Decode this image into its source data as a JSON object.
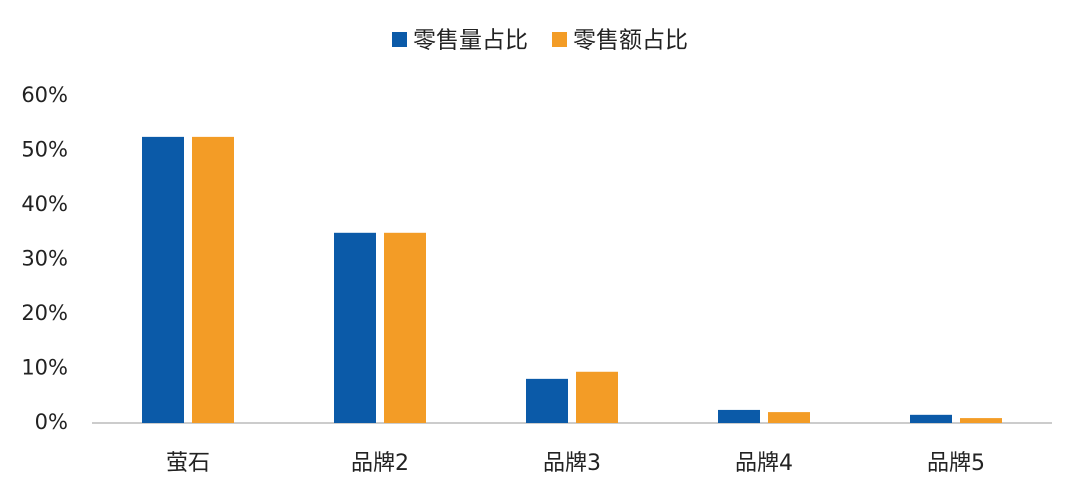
{
  "chart_data": {
    "type": "bar",
    "categories": [
      "萤石",
      "品牌2",
      "品牌3",
      "品牌4",
      "品牌5"
    ],
    "series": [
      {
        "name": "零售量占比",
        "color": "#0b5aa8",
        "values": [
          52.5,
          34.9,
          8.1,
          2.4,
          1.5
        ]
      },
      {
        "name": "零售额占比",
        "color": "#f39c26",
        "values": [
          52.5,
          34.9,
          9.4,
          2.0,
          0.9
        ]
      }
    ],
    "ylim": [
      0,
      60
    ],
    "yticks": [
      {
        "value": 0,
        "label": "0%"
      },
      {
        "value": 10,
        "label": "10%"
      },
      {
        "value": 20,
        "label": "20%"
      },
      {
        "value": 30,
        "label": "30%"
      },
      {
        "value": 40,
        "label": "40%"
      },
      {
        "value": 50,
        "label": "50%"
      },
      {
        "value": 60,
        "label": "60%"
      }
    ],
    "grid": false,
    "legend": "top"
  }
}
